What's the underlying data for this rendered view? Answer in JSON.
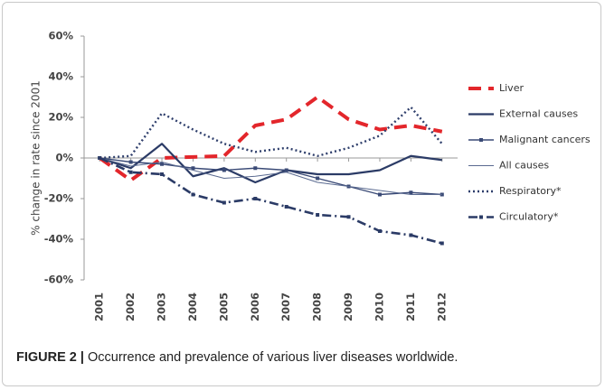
{
  "chart_data": {
    "type": "line",
    "ylabel": "% change in rate since 2001",
    "categories": [
      "2001",
      "2002",
      "2003",
      "2004",
      "2005",
      "2006",
      "2007",
      "2008",
      "2009",
      "2010",
      "2011",
      "2012"
    ],
    "ylim": [
      -60,
      60
    ],
    "yticks": [
      {
        "value": -60,
        "label": "-60%"
      },
      {
        "value": -40,
        "label": "-40%"
      },
      {
        "value": -20,
        "label": "-20%"
      },
      {
        "value": 0,
        "label": "0%"
      },
      {
        "value": 20,
        "label": "20%"
      },
      {
        "value": 40,
        "label": "40%"
      },
      {
        "value": 60,
        "label": "60%"
      }
    ],
    "grid": false,
    "legend": "right",
    "series": [
      {
        "name": "Liver",
        "color": "#e3262b",
        "dash": "dash",
        "width": 4,
        "values": [
          0,
          -11,
          0,
          0.5,
          1,
          16,
          19,
          30,
          19,
          14,
          16,
          13
        ]
      },
      {
        "name": "External causes",
        "color": "#2b3b66",
        "dash": "solid",
        "width": 2.2,
        "values": [
          0,
          -5,
          7,
          -9,
          -5,
          -12,
          -6,
          -8,
          -8,
          -6,
          1,
          -1
        ]
      },
      {
        "name": "Malignant cancers",
        "color": "#3a4a76",
        "dash": "solid",
        "width": 1.4,
        "marker": true,
        "values": [
          0,
          -2,
          -3,
          -5,
          -6,
          -5,
          -6,
          -10,
          -14,
          -18,
          -17,
          -18
        ]
      },
      {
        "name": "All causes",
        "color": "#5a6a90",
        "dash": "solid",
        "width": 1,
        "values": [
          0,
          -4,
          -2,
          -6,
          -10,
          -9,
          -7,
          -12,
          -14,
          -16,
          -18,
          -18
        ]
      },
      {
        "name": "Respiratory*",
        "color": "#2f3f6c",
        "dash": "dot",
        "width": 2.4,
        "values": [
          0,
          1,
          22,
          14,
          7,
          3,
          5,
          1,
          5,
          11,
          25,
          7
        ]
      },
      {
        "name": "Circulatory*",
        "color": "#2b3b66",
        "dash": "dashdot",
        "width": 2.6,
        "marker": true,
        "values": [
          0,
          -7,
          -8,
          -18,
          -22,
          -20,
          -24,
          -28,
          -29,
          -36,
          -38,
          -42
        ]
      }
    ]
  },
  "caption": {
    "label": "FIGURE 2 |",
    "text": "Occurrence and prevalence of various liver diseases worldwide."
  }
}
